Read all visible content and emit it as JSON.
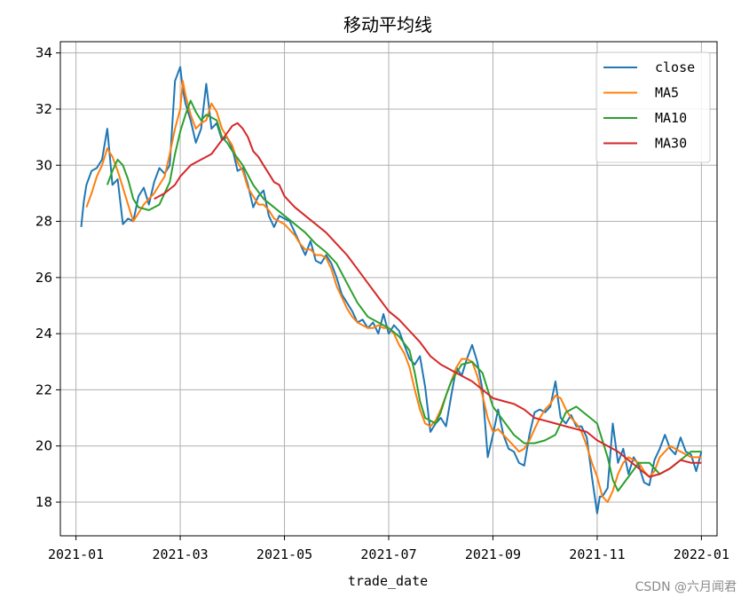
{
  "chart_data": {
    "type": "line",
    "title": "移动平均线",
    "xlabel": "trade_date",
    "ylabel": "",
    "x_unit": "months since 2021-01-01",
    "xlim": [
      -0.3,
      12.3
    ],
    "ylim": [
      16.8,
      34.4
    ],
    "x_tick_values": [
      0,
      2,
      4,
      6,
      8,
      10,
      12
    ],
    "x_tick_labels": [
      "2021-01",
      "2021-03",
      "2021-05",
      "2021-07",
      "2021-09",
      "2021-11",
      "2022-01"
    ],
    "y_ticks": [
      18,
      20,
      22,
      24,
      26,
      28,
      30,
      32,
      34
    ],
    "grid": true,
    "legend_position": "top-right",
    "series": [
      {
        "name": "close",
        "color": "#1f77b4",
        "x": [
          0.1,
          0.15,
          0.2,
          0.3,
          0.4,
          0.5,
          0.6,
          0.7,
          0.8,
          0.9,
          1.0,
          1.1,
          1.2,
          1.3,
          1.4,
          1.5,
          1.6,
          1.7,
          1.8,
          1.9,
          2.0,
          2.05,
          2.1,
          2.2,
          2.3,
          2.4,
          2.5,
          2.6,
          2.7,
          2.8,
          2.9,
          3.0,
          3.1,
          3.2,
          3.3,
          3.4,
          3.5,
          3.6,
          3.7,
          3.8,
          3.9,
          4.0,
          4.1,
          4.2,
          4.3,
          4.4,
          4.5,
          4.6,
          4.7,
          4.8,
          4.9,
          5.0,
          5.1,
          5.2,
          5.3,
          5.4,
          5.5,
          5.6,
          5.7,
          5.8,
          5.9,
          6.0,
          6.1,
          6.2,
          6.3,
          6.4,
          6.5,
          6.6,
          6.7,
          6.8,
          6.9,
          7.0,
          7.1,
          7.2,
          7.3,
          7.4,
          7.5,
          7.6,
          7.7,
          7.8,
          7.9,
          8.0,
          8.1,
          8.2,
          8.3,
          8.4,
          8.5,
          8.6,
          8.7,
          8.8,
          8.9,
          9.0,
          9.1,
          9.2,
          9.3,
          9.4,
          9.5,
          9.6,
          9.7,
          9.8,
          9.9,
          10.0,
          10.05,
          10.1,
          10.2,
          10.3,
          10.4,
          10.5,
          10.6,
          10.7,
          10.8,
          10.9,
          11.0,
          11.1,
          11.2,
          11.3,
          11.4,
          11.5,
          11.6,
          11.7,
          11.8,
          11.9,
          12.0
        ],
        "values": [
          27.8,
          28.7,
          29.3,
          29.8,
          29.9,
          30.2,
          31.3,
          29.3,
          29.5,
          27.9,
          28.1,
          28.0,
          28.9,
          29.2,
          28.6,
          29.4,
          29.9,
          29.7,
          30.0,
          33.0,
          33.5,
          32.7,
          32.2,
          31.6,
          30.8,
          31.3,
          32.9,
          31.3,
          31.5,
          30.9,
          31.0,
          30.6,
          29.8,
          29.9,
          29.3,
          28.5,
          28.9,
          29.1,
          28.2,
          27.8,
          28.2,
          28.1,
          28.0,
          27.6,
          27.2,
          26.8,
          27.3,
          26.6,
          26.5,
          26.8,
          26.5,
          26.0,
          25.4,
          25.1,
          24.8,
          24.4,
          24.5,
          24.2,
          24.4,
          24.0,
          24.7,
          24.0,
          24.3,
          24.1,
          23.6,
          23.1,
          22.9,
          23.2,
          22.1,
          20.5,
          20.8,
          21.0,
          20.7,
          21.8,
          22.8,
          22.5,
          23.1,
          23.6,
          23.0,
          22.0,
          19.6,
          20.4,
          21.3,
          20.4,
          19.9,
          19.8,
          19.4,
          19.3,
          20.4,
          21.2,
          21.3,
          21.2,
          21.4,
          22.3,
          21.0,
          20.8,
          21.1,
          20.7,
          20.7,
          20.3,
          18.9,
          17.6,
          18.2,
          18.2,
          18.5,
          20.8,
          19.4,
          19.9,
          19.0,
          19.6,
          19.3,
          18.7,
          18.6,
          19.5,
          19.9,
          20.4,
          19.9,
          19.7,
          20.3,
          19.8,
          19.7,
          19.1,
          19.8
        ],
        "dash": ""
      },
      {
        "name": "MA5",
        "color": "#ff7f0e",
        "x": [
          0.2,
          0.3,
          0.4,
          0.5,
          0.6,
          0.7,
          0.8,
          0.9,
          1.0,
          1.1,
          1.2,
          1.3,
          1.4,
          1.5,
          1.6,
          1.7,
          1.8,
          1.9,
          2.0,
          2.05,
          2.1,
          2.2,
          2.3,
          2.4,
          2.5,
          2.6,
          2.7,
          2.8,
          2.9,
          3.0,
          3.1,
          3.2,
          3.3,
          3.4,
          3.5,
          3.6,
          3.7,
          3.8,
          3.9,
          4.0,
          4.1,
          4.2,
          4.3,
          4.4,
          4.5,
          4.6,
          4.7,
          4.8,
          4.9,
          5.0,
          5.1,
          5.2,
          5.3,
          5.4,
          5.5,
          5.6,
          5.7,
          5.8,
          5.9,
          6.0,
          6.1,
          6.2,
          6.3,
          6.4,
          6.5,
          6.6,
          6.7,
          6.8,
          6.9,
          7.0,
          7.1,
          7.2,
          7.3,
          7.4,
          7.5,
          7.6,
          7.7,
          7.8,
          7.9,
          8.0,
          8.1,
          8.2,
          8.3,
          8.4,
          8.5,
          8.6,
          8.7,
          8.8,
          8.9,
          9.0,
          9.1,
          9.2,
          9.3,
          9.4,
          9.5,
          9.6,
          9.7,
          9.8,
          9.9,
          10.0,
          10.1,
          10.2,
          10.3,
          10.4,
          10.5,
          10.6,
          10.7,
          10.8,
          10.9,
          11.0,
          11.1,
          11.2,
          11.3,
          11.4,
          11.5,
          11.6,
          11.7,
          11.8,
          11.9,
          12.0
        ],
        "values": [
          28.5,
          29.0,
          29.6,
          30.0,
          30.6,
          30.3,
          29.8,
          29.2,
          28.6,
          28.0,
          28.3,
          28.6,
          28.8,
          29.0,
          29.3,
          29.6,
          30.4,
          31.3,
          32.0,
          33.0,
          32.5,
          31.8,
          31.3,
          31.5,
          31.6,
          32.2,
          31.9,
          31.3,
          31.0,
          30.7,
          30.1,
          29.8,
          29.2,
          28.9,
          28.6,
          28.6,
          28.4,
          28.1,
          28.0,
          27.9,
          27.7,
          27.5,
          27.2,
          27.0,
          27.0,
          26.8,
          26.8,
          26.7,
          26.3,
          25.7,
          25.3,
          24.9,
          24.6,
          24.4,
          24.3,
          24.2,
          24.2,
          24.3,
          24.2,
          24.2,
          24.0,
          23.6,
          23.3,
          22.8,
          22.0,
          21.3,
          20.8,
          20.7,
          20.9,
          21.3,
          21.8,
          22.3,
          22.8,
          23.1,
          23.1,
          23.0,
          22.5,
          21.8,
          21.0,
          20.5,
          20.6,
          20.4,
          20.2,
          20.0,
          19.8,
          19.9,
          20.2,
          20.6,
          21.0,
          21.3,
          21.5,
          21.8,
          21.7,
          21.3,
          21.0,
          20.8,
          20.5,
          20.0,
          19.4,
          18.9,
          18.2,
          18.0,
          18.4,
          19.0,
          19.4,
          19.6,
          19.5,
          19.4,
          19.1,
          18.9,
          19.1,
          19.6,
          19.8,
          20.0,
          19.9,
          19.8,
          19.7,
          19.6,
          19.6,
          19.6
        ],
        "dash": ""
      },
      {
        "name": "MA10",
        "color": "#2ca02c",
        "x": [
          0.6,
          0.7,
          0.8,
          0.9,
          1.0,
          1.1,
          1.2,
          1.4,
          1.6,
          1.8,
          1.9,
          2.0,
          2.1,
          2.2,
          2.3,
          2.4,
          2.5,
          2.6,
          2.7,
          2.8,
          2.9,
          3.0,
          3.2,
          3.4,
          3.6,
          3.8,
          4.0,
          4.2,
          4.4,
          4.6,
          4.8,
          5.0,
          5.2,
          5.4,
          5.6,
          5.8,
          6.0,
          6.2,
          6.4,
          6.5,
          6.6,
          6.7,
          6.8,
          6.9,
          7.0,
          7.1,
          7.2,
          7.4,
          7.6,
          7.8,
          8.0,
          8.2,
          8.4,
          8.6,
          8.8,
          9.0,
          9.2,
          9.4,
          9.6,
          9.8,
          10.0,
          10.1,
          10.2,
          10.3,
          10.4,
          10.6,
          10.8,
          11.0,
          11.2,
          11.4,
          11.6,
          11.8,
          12.0
        ],
        "values": [
          29.3,
          29.8,
          30.2,
          30.0,
          29.5,
          28.8,
          28.5,
          28.4,
          28.6,
          29.4,
          30.4,
          31.2,
          31.8,
          32.3,
          31.9,
          31.6,
          31.8,
          31.7,
          31.6,
          31.0,
          30.8,
          30.5,
          30.0,
          29.3,
          28.8,
          28.5,
          28.2,
          27.9,
          27.6,
          27.2,
          26.9,
          26.5,
          25.8,
          25.1,
          24.6,
          24.4,
          24.2,
          23.9,
          23.4,
          22.6,
          21.6,
          21.0,
          20.9,
          20.8,
          21.2,
          21.8,
          22.3,
          22.9,
          23.0,
          22.6,
          21.4,
          20.9,
          20.4,
          20.1,
          20.1,
          20.2,
          20.4,
          21.2,
          21.4,
          21.1,
          20.8,
          20.2,
          19.6,
          18.8,
          18.4,
          18.9,
          19.4,
          19.4,
          19.0,
          19.2,
          19.5,
          19.8,
          19.8
        ],
        "dash": ""
      },
      {
        "name": "MA30",
        "color": "#d62728",
        "x": [
          1.5,
          1.7,
          1.9,
          2.0,
          2.2,
          2.4,
          2.6,
          2.8,
          3.0,
          3.1,
          3.2,
          3.3,
          3.4,
          3.5,
          3.6,
          3.7,
          3.8,
          3.9,
          4.0,
          4.1,
          4.2,
          4.4,
          4.6,
          4.8,
          5.0,
          5.2,
          5.4,
          5.6,
          5.8,
          6.0,
          6.2,
          6.4,
          6.6,
          6.8,
          7.0,
          7.2,
          7.4,
          7.6,
          7.8,
          8.0,
          8.2,
          8.4,
          8.6,
          8.8,
          9.0,
          9.2,
          9.4,
          9.6,
          9.8,
          10.0,
          10.2,
          10.4,
          10.6,
          10.8,
          11.0,
          11.2,
          11.4,
          11.6,
          11.8,
          12.0
        ],
        "values": [
          28.8,
          29.0,
          29.3,
          29.6,
          30.0,
          30.2,
          30.4,
          30.9,
          31.4,
          31.5,
          31.3,
          31.0,
          30.5,
          30.3,
          30.0,
          29.7,
          29.4,
          29.3,
          28.9,
          28.7,
          28.5,
          28.2,
          27.9,
          27.6,
          27.2,
          26.8,
          26.3,
          25.8,
          25.3,
          24.8,
          24.5,
          24.1,
          23.7,
          23.2,
          22.9,
          22.7,
          22.5,
          22.3,
          22.0,
          21.7,
          21.6,
          21.5,
          21.3,
          21.0,
          20.9,
          20.8,
          20.7,
          20.6,
          20.5,
          20.2,
          20.0,
          19.8,
          19.5,
          19.2,
          18.9,
          19.0,
          19.2,
          19.5,
          19.4,
          19.4
        ],
        "dash": ""
      }
    ]
  },
  "watermark": "CSDN @六月闻君"
}
